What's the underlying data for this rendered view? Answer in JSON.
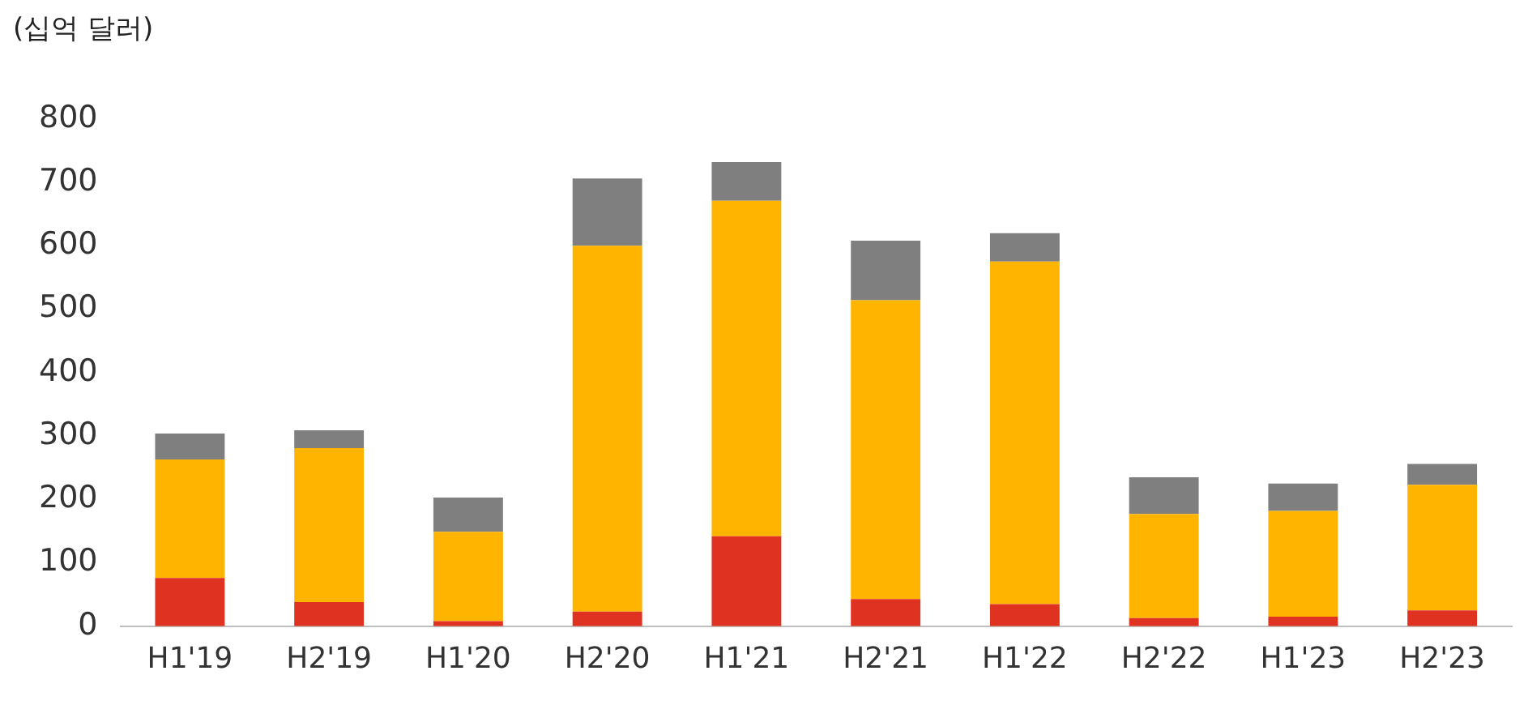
{
  "chart_data": {
    "type": "bar",
    "stacked": true,
    "ylabel": "(십억 달러)",
    "categories": [
      "H1'19",
      "H2'19",
      "H1'20",
      "H2'20",
      "H1'21",
      "H2'21",
      "H1'22",
      "H2'22",
      "H1'23",
      "H2'23"
    ],
    "series": [
      {
        "color": "#e03220",
        "values": [
          76,
          38,
          8,
          23,
          142,
          43,
          35,
          13,
          15,
          25
        ]
      },
      {
        "color": "#ffb400",
        "values": [
          187,
          243,
          141,
          577,
          529,
          471,
          540,
          164,
          167,
          198
        ]
      },
      {
        "color": "#7f7f7f",
        "values": [
          41,
          28,
          54,
          106,
          61,
          94,
          45,
          58,
          43,
          33
        ]
      }
    ],
    "ylim": [
      0,
      800
    ],
    "yticks": [
      0,
      100,
      200,
      300,
      400,
      500,
      600,
      700,
      800
    ],
    "grid": false,
    "legend": false
  }
}
